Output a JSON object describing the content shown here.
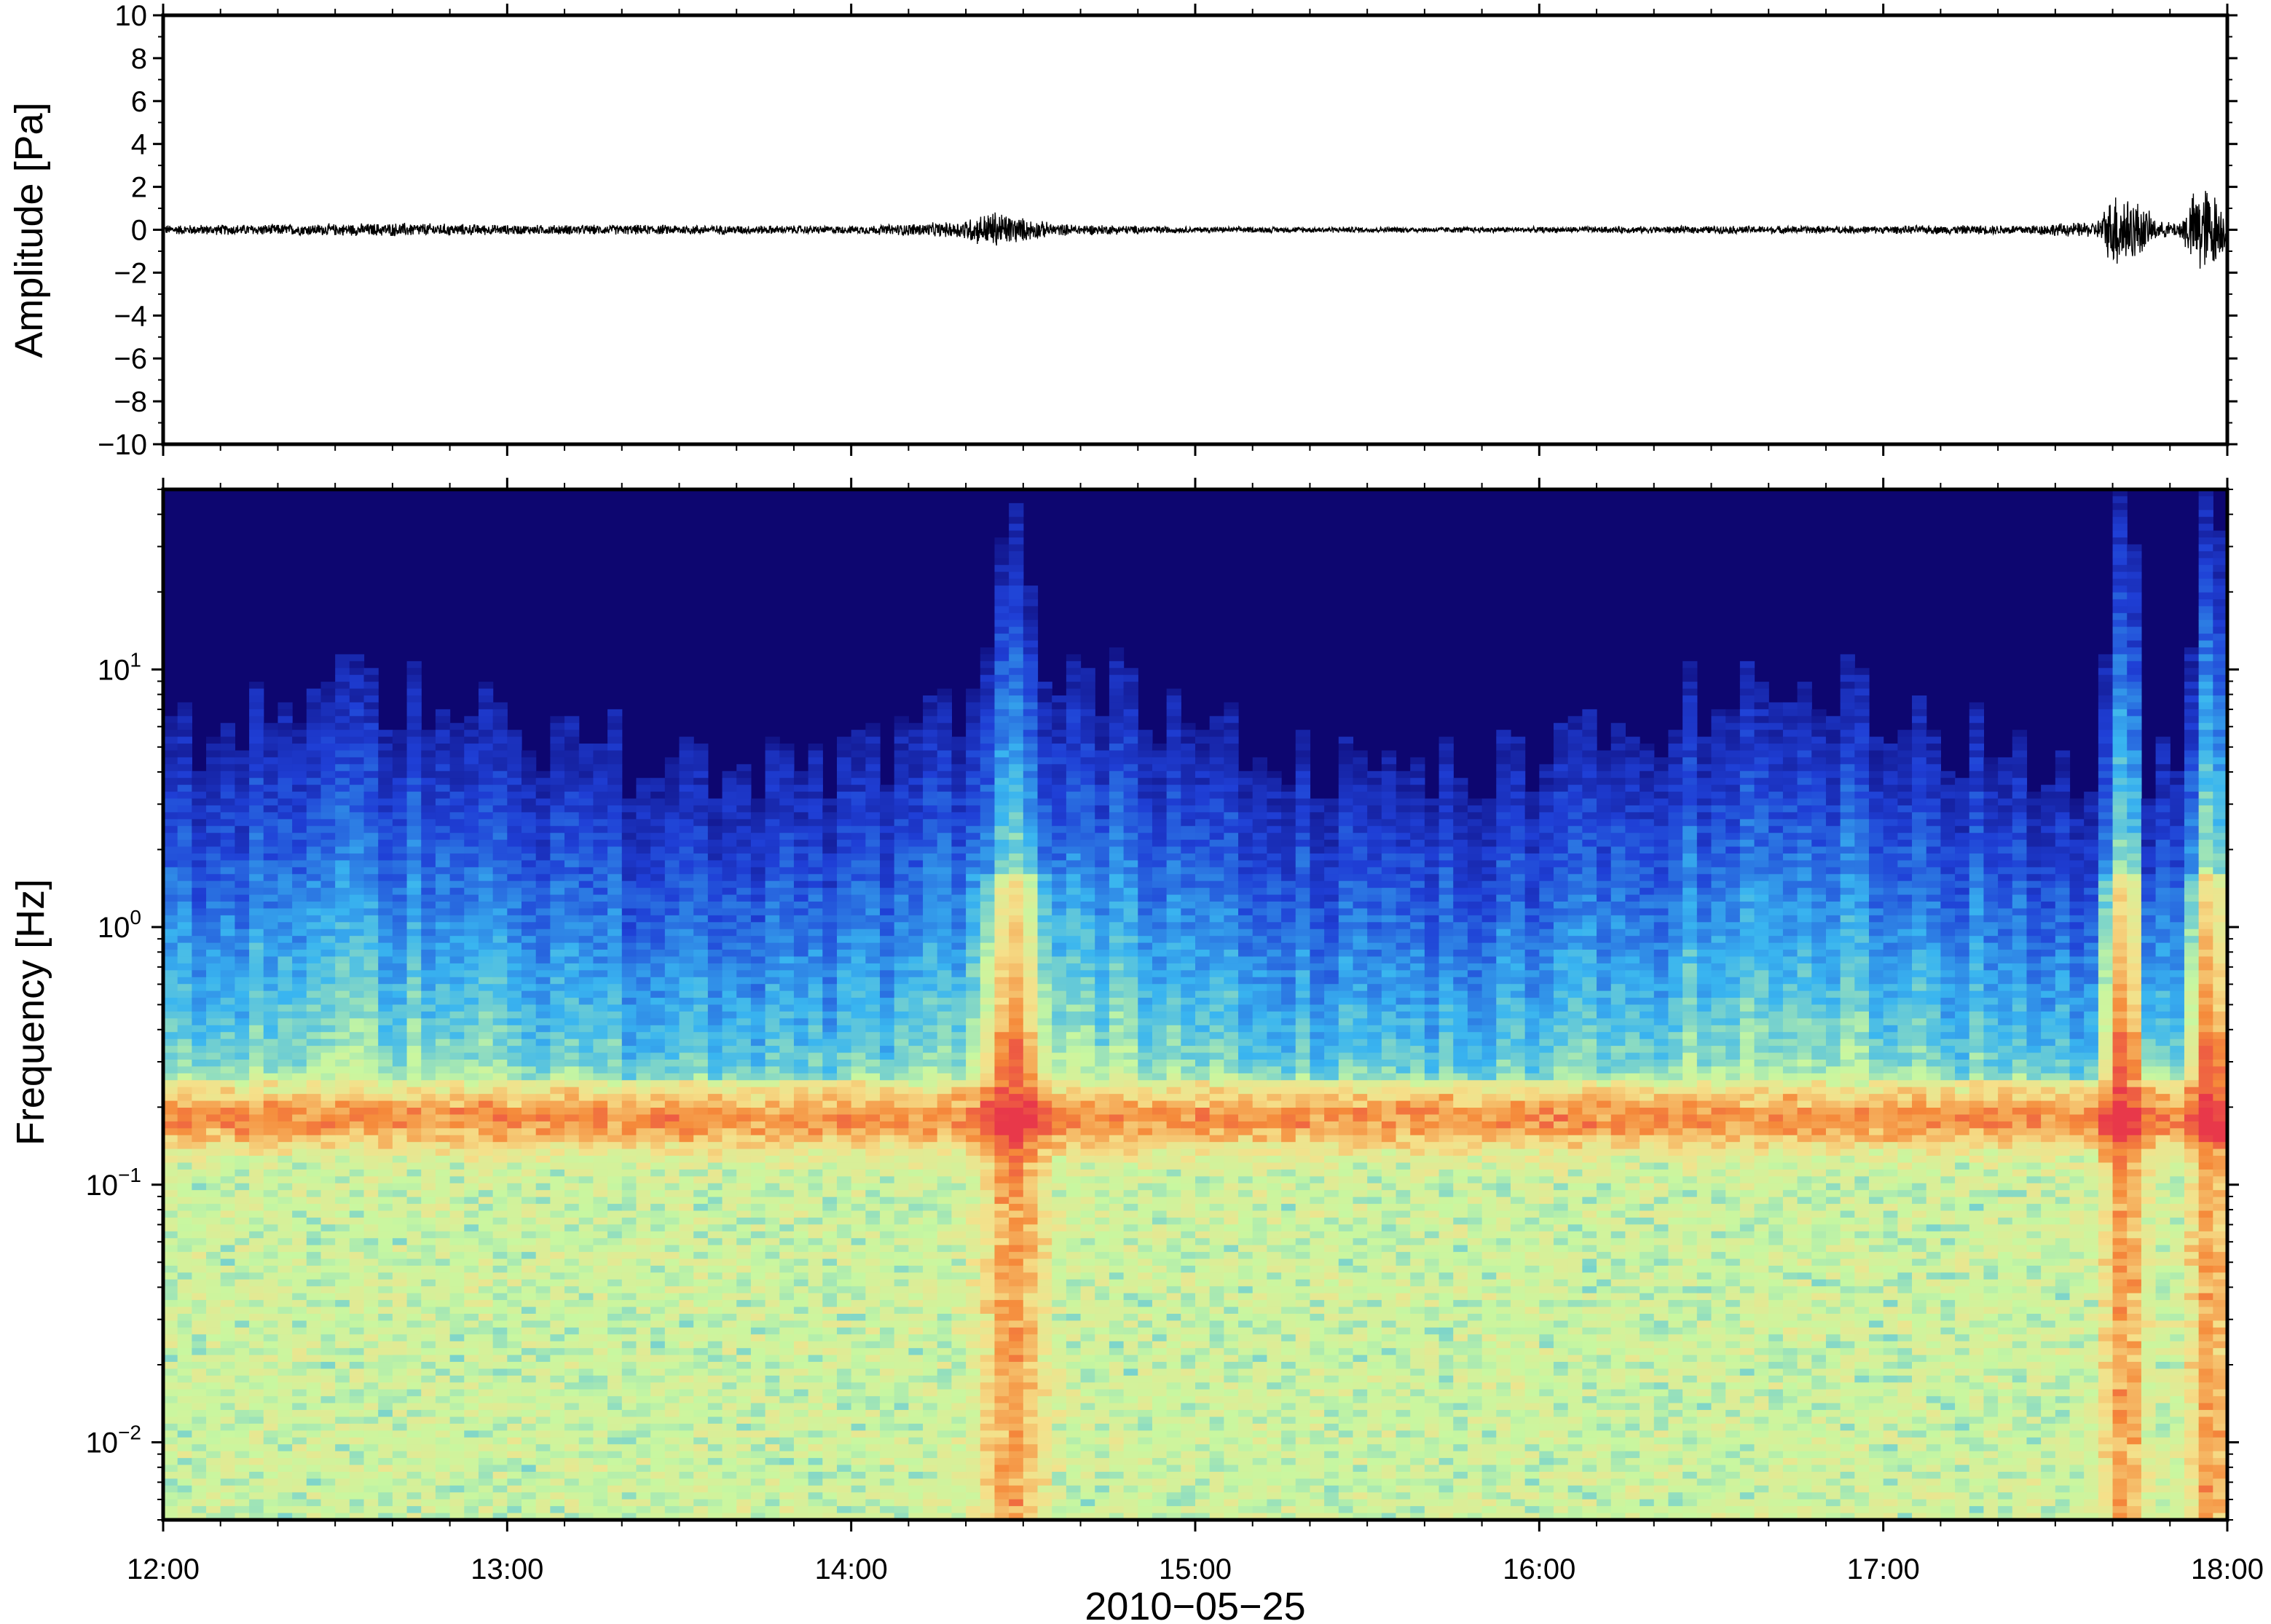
{
  "chart_data": [
    {
      "type": "line",
      "panel": "waveform",
      "ylabel": "Amplitude [Pa]",
      "ylim": [
        -10,
        10
      ],
      "yticks": [
        10,
        8,
        6,
        4,
        2,
        0,
        -2,
        -4,
        -6,
        -8,
        -10
      ],
      "ytick_labels": [
        "10",
        "8",
        "6",
        "4",
        "2",
        "0",
        "−2",
        "−4",
        "−6",
        "−8",
        "−10"
      ],
      "xlim": [
        "12:00",
        "18:00"
      ],
      "series": [
        {
          "color": "#000000",
          "envelope_hours_amplitude": [
            [
              12.0,
              0.25
            ],
            [
              12.5,
              0.3
            ],
            [
              12.7,
              0.35
            ],
            [
              13.0,
              0.25
            ],
            [
              13.5,
              0.25
            ],
            [
              14.0,
              0.2
            ],
            [
              14.3,
              0.4
            ],
            [
              14.42,
              1.0
            ],
            [
              14.5,
              0.6
            ],
            [
              14.6,
              0.3
            ],
            [
              15.0,
              0.15
            ],
            [
              15.5,
              0.15
            ],
            [
              16.0,
              0.15
            ],
            [
              16.5,
              0.2
            ],
            [
              17.0,
              0.2
            ],
            [
              17.4,
              0.25
            ],
            [
              17.62,
              0.4
            ],
            [
              17.68,
              2.2
            ],
            [
              17.74,
              1.5
            ],
            [
              17.8,
              0.4
            ],
            [
              17.86,
              0.4
            ],
            [
              17.92,
              2.5
            ],
            [
              17.96,
              2.0
            ],
            [
              18.0,
              0.8
            ]
          ]
        }
      ]
    },
    {
      "type": "heatmap",
      "panel": "spectrogram",
      "ylabel": "Frequency [Hz]",
      "xlabel": "2010−05−25",
      "yscale": "log",
      "ylim": [
        0.005,
        50
      ],
      "yticks": [
        0.01,
        0.1,
        1,
        10
      ],
      "ytick_labels": [
        {
          "base": "10",
          "exp": "−2"
        },
        {
          "base": "10",
          "exp": "−1"
        },
        {
          "base": "10",
          "exp": "0"
        },
        {
          "base": "10",
          "exp": "1"
        }
      ],
      "xlim": [
        "12:00",
        "18:00"
      ],
      "xticks": [
        12,
        13,
        14,
        15,
        16,
        17,
        18
      ],
      "xtick_labels": [
        "12:00",
        "13:00",
        "14:00",
        "15:00",
        "16:00",
        "17:00",
        "18:00"
      ],
      "colormap": "jet",
      "colormap_stops": [
        "#0d0670",
        "#1f3fd6",
        "#39b5f0",
        "#c8f7a0",
        "#f5e08a",
        "#f58a3a",
        "#e8384a"
      ],
      "events": [
        {
          "time_hours": 14.47,
          "label_level": "strong",
          "upper_freq_hz": 14
        },
        {
          "time_hours": 17.7,
          "label_level": "strong",
          "upper_freq_hz": 18
        },
        {
          "time_hours": 17.95,
          "label_level": "strong",
          "upper_freq_hz": 20
        }
      ],
      "band_peak_hz": 0.18
    }
  ]
}
